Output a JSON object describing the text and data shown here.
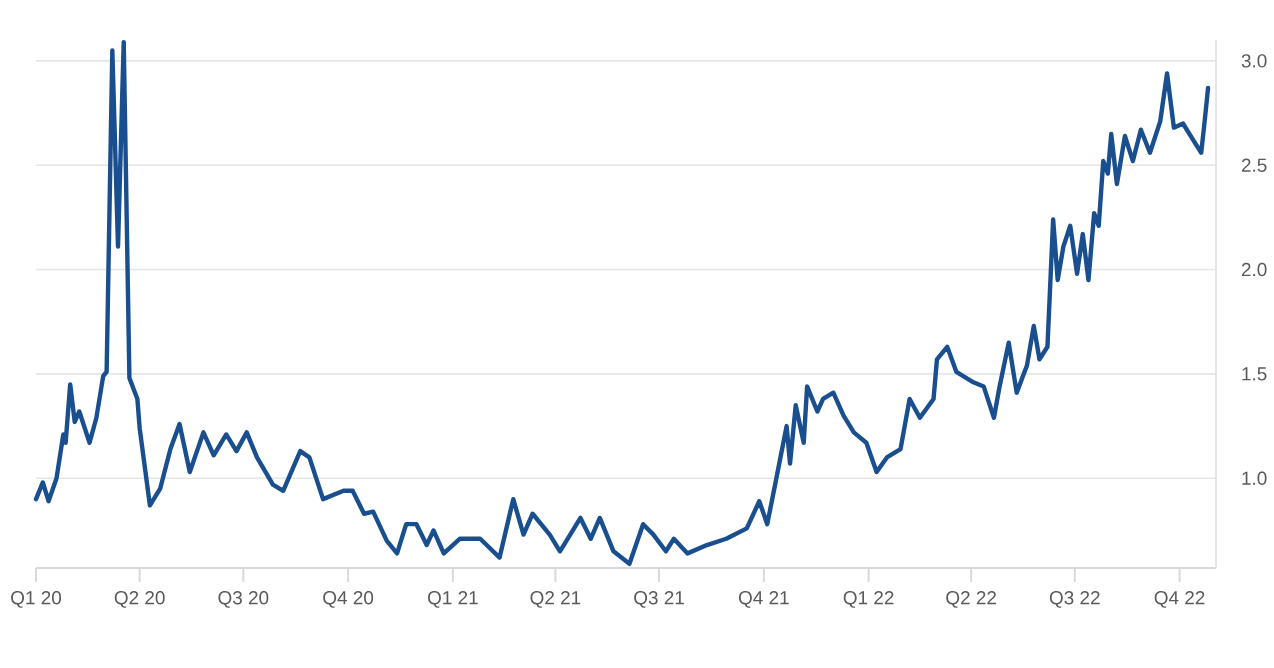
{
  "chart_data": {
    "type": "line",
    "line_style": "solid",
    "marker": "none",
    "grid": "y",
    "xlim": [
      "2020-01-01",
      "2022-11-02"
    ],
    "ylim": [
      0.57,
      3.1
    ],
    "xticks": [
      {
        "value": "2020-01-01",
        "label": "Q1 20"
      },
      {
        "value": "2020-04-01",
        "label": "Q2 20"
      },
      {
        "value": "2020-07-01",
        "label": "Q3 20"
      },
      {
        "value": "2020-10-01",
        "label": "Q4 20"
      },
      {
        "value": "2021-01-01",
        "label": "Q1 21"
      },
      {
        "value": "2021-04-01",
        "label": "Q2 21"
      },
      {
        "value": "2021-07-01",
        "label": "Q3 21"
      },
      {
        "value": "2021-10-01",
        "label": "Q4 21"
      },
      {
        "value": "2022-01-01",
        "label": "Q1 22"
      },
      {
        "value": "2022-04-01",
        "label": "Q2 22"
      },
      {
        "value": "2022-07-01",
        "label": "Q3 22"
      },
      {
        "value": "2022-10-01",
        "label": "Q4 22"
      }
    ],
    "yticks": [
      {
        "value": 1,
        "label": "1.0"
      },
      {
        "value": 1.5,
        "label": "1.5"
      },
      {
        "value": 2,
        "label": "2.0"
      },
      {
        "value": 2.5,
        "label": "2.5"
      },
      {
        "value": 3,
        "label": "3.0"
      }
    ],
    "series": [
      {
        "color": "#1a4f8f",
        "x": [
          "2020-01-01",
          "2020-01-07",
          "2020-01-12",
          "2020-01-19",
          "2020-01-25",
          "2020-01-27",
          "2020-01-31",
          "2020-02-04",
          "2020-02-08",
          "2020-02-17",
          "2020-02-23",
          "2020-02-29",
          "2020-03-03",
          "2020-03-08",
          "2020-03-13",
          "2020-03-18",
          "2020-03-23",
          "2020-03-30",
          "2020-04-01",
          "2020-04-10",
          "2020-04-19",
          "2020-04-28",
          "2020-05-06",
          "2020-05-15",
          "2020-05-27",
          "2020-06-05",
          "2020-06-16",
          "2020-06-25",
          "2020-07-04",
          "2020-07-13",
          "2020-07-27",
          "2020-08-05",
          "2020-08-20",
          "2020-08-28",
          "2020-09-09",
          "2020-09-27",
          "2020-10-05",
          "2020-10-15",
          "2020-10-23",
          "2020-11-04",
          "2020-11-13",
          "2020-11-21",
          "2020-11-30",
          "2020-12-09",
          "2020-12-15",
          "2020-12-24",
          "2021-01-07",
          "2021-01-25",
          "2021-02-11",
          "2021-02-23",
          "2021-03-04",
          "2021-03-12",
          "2021-03-27",
          "2021-04-05",
          "2021-04-23",
          "2021-05-02",
          "2021-05-10",
          "2021-05-22",
          "2021-06-05",
          "2021-06-17",
          "2021-06-26",
          "2021-07-07",
          "2021-07-14",
          "2021-07-26",
          "2021-08-12",
          "2021-08-29",
          "2021-09-16",
          "2021-09-27",
          "2021-10-04",
          "2021-10-12",
          "2021-10-21",
          "2021-10-24",
          "2021-10-29",
          "2021-11-05",
          "2021-11-08",
          "2021-11-17",
          "2021-11-22",
          "2021-12-01",
          "2021-12-10",
          "2021-12-19",
          "2021-12-30",
          "2022-01-08",
          "2022-01-17",
          "2022-01-29",
          "2022-02-06",
          "2022-02-15",
          "2022-02-27",
          "2022-03-02",
          "2022-03-11",
          "2022-03-19",
          "2022-04-03",
          "2022-04-12",
          "2022-04-21",
          "2022-04-26",
          "2022-05-04",
          "2022-05-11",
          "2022-05-20",
          "2022-05-26",
          "2022-05-31",
          "2022-06-07",
          "2022-06-12",
          "2022-06-16",
          "2022-06-21",
          "2022-06-27",
          "2022-07-03",
          "2022-07-08",
          "2022-07-13",
          "2022-07-18",
          "2022-07-22",
          "2022-07-26",
          "2022-07-30",
          "2022-08-02",
          "2022-08-07",
          "2022-08-14",
          "2022-08-21",
          "2022-08-28",
          "2022-09-05",
          "2022-09-14",
          "2022-09-20",
          "2022-09-26",
          "2022-10-04",
          "2022-10-13",
          "2022-10-20",
          "2022-10-23",
          "2022-10-26"
        ],
        "values": [
          0.9,
          0.98,
          0.89,
          1.0,
          1.21,
          1.17,
          1.45,
          1.27,
          1.32,
          1.17,
          1.29,
          1.49,
          1.51,
          3.05,
          2.11,
          3.09,
          1.48,
          1.38,
          1.24,
          0.87,
          0.95,
          1.14,
          1.26,
          1.03,
          1.22,
          1.11,
          1.21,
          1.13,
          1.22,
          1.1,
          0.97,
          0.94,
          1.13,
          1.1,
          0.9,
          0.94,
          0.94,
          0.83,
          0.84,
          0.7,
          0.64,
          0.78,
          0.78,
          0.68,
          0.75,
          0.64,
          0.71,
          0.71,
          0.62,
          0.9,
          0.73,
          0.83,
          0.73,
          0.65,
          0.81,
          0.71,
          0.81,
          0.65,
          0.59,
          0.78,
          0.73,
          0.65,
          0.71,
          0.64,
          0.68,
          0.71,
          0.76,
          0.89,
          0.78,
          1.0,
          1.25,
          1.07,
          1.35,
          1.17,
          1.44,
          1.32,
          1.38,
          1.41,
          1.3,
          1.22,
          1.17,
          1.03,
          1.1,
          1.14,
          1.38,
          1.29,
          1.38,
          1.57,
          1.63,
          1.51,
          1.46,
          1.44,
          1.29,
          1.44,
          1.65,
          1.41,
          1.54,
          1.73,
          1.57,
          1.63,
          2.24,
          1.95,
          2.11,
          2.21,
          1.98,
          2.17,
          1.95,
          2.27,
          2.21,
          2.52,
          2.46,
          2.65,
          2.41,
          2.64,
          2.52,
          2.67,
          2.56,
          2.71,
          2.94,
          2.68,
          2.7,
          2.62,
          2.56,
          2.71,
          2.87
        ]
      }
    ]
  }
}
